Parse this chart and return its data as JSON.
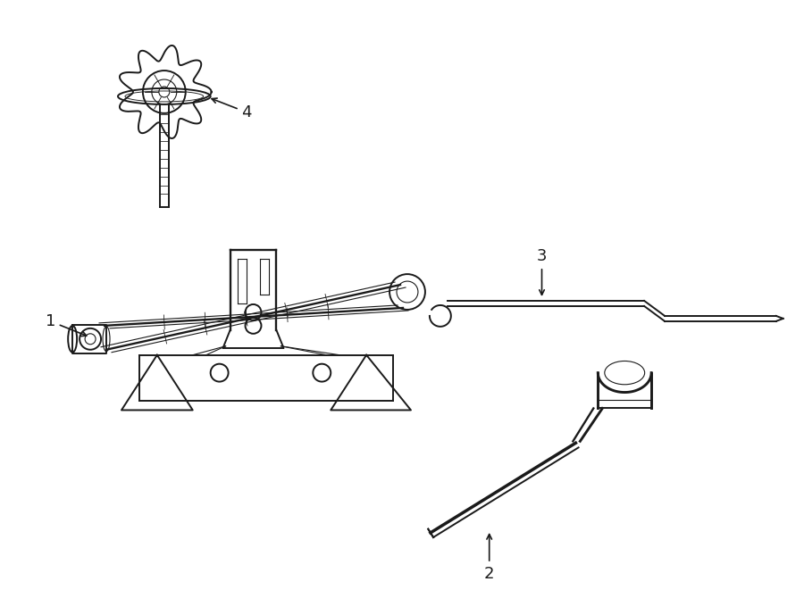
{
  "bg_color": "#ffffff",
  "line_color": "#1a1a1a",
  "lw": 1.4,
  "tlw": 0.8,
  "label_fs": 13,
  "figsize": [
    9.0,
    6.61
  ],
  "dpi": 100
}
